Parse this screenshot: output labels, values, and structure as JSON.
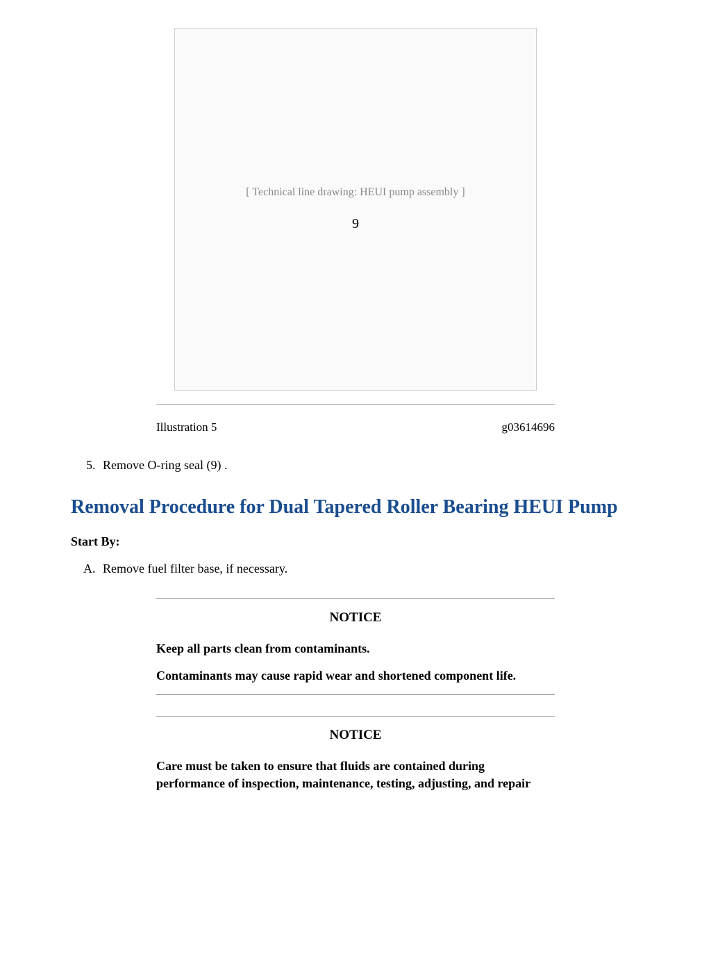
{
  "illustration": {
    "placeholder_label": "[ Technical line drawing: HEUI pump assembly ]",
    "callout_number": "9",
    "caption_left": "Illustration 5",
    "caption_right": "g03614696"
  },
  "step": {
    "start_number": 5,
    "text": "Remove O-ring seal (9) ."
  },
  "heading": "Removal Procedure for Dual Tapered Roller Bearing HEUI Pump",
  "start_by_label": "Start By:",
  "start_by_item": "Remove fuel filter base, if necessary.",
  "notice1": {
    "title": "NOTICE",
    "line1": "Keep all parts clean from contaminants.",
    "line2": "Contaminants may cause rapid wear and shortened component life."
  },
  "notice2": {
    "title": "NOTICE",
    "line1": "Care must be taken to ensure that fluids are contained during performance of inspection, maintenance, testing, adjusting, and repair"
  },
  "colors": {
    "heading_color": "#1a4d8f",
    "text_color": "#000000",
    "rule_color": "#999999"
  },
  "typography": {
    "body_font": "Times New Roman",
    "body_size_pt": 14,
    "heading_size_pt": 21,
    "heading_weight": "bold"
  }
}
